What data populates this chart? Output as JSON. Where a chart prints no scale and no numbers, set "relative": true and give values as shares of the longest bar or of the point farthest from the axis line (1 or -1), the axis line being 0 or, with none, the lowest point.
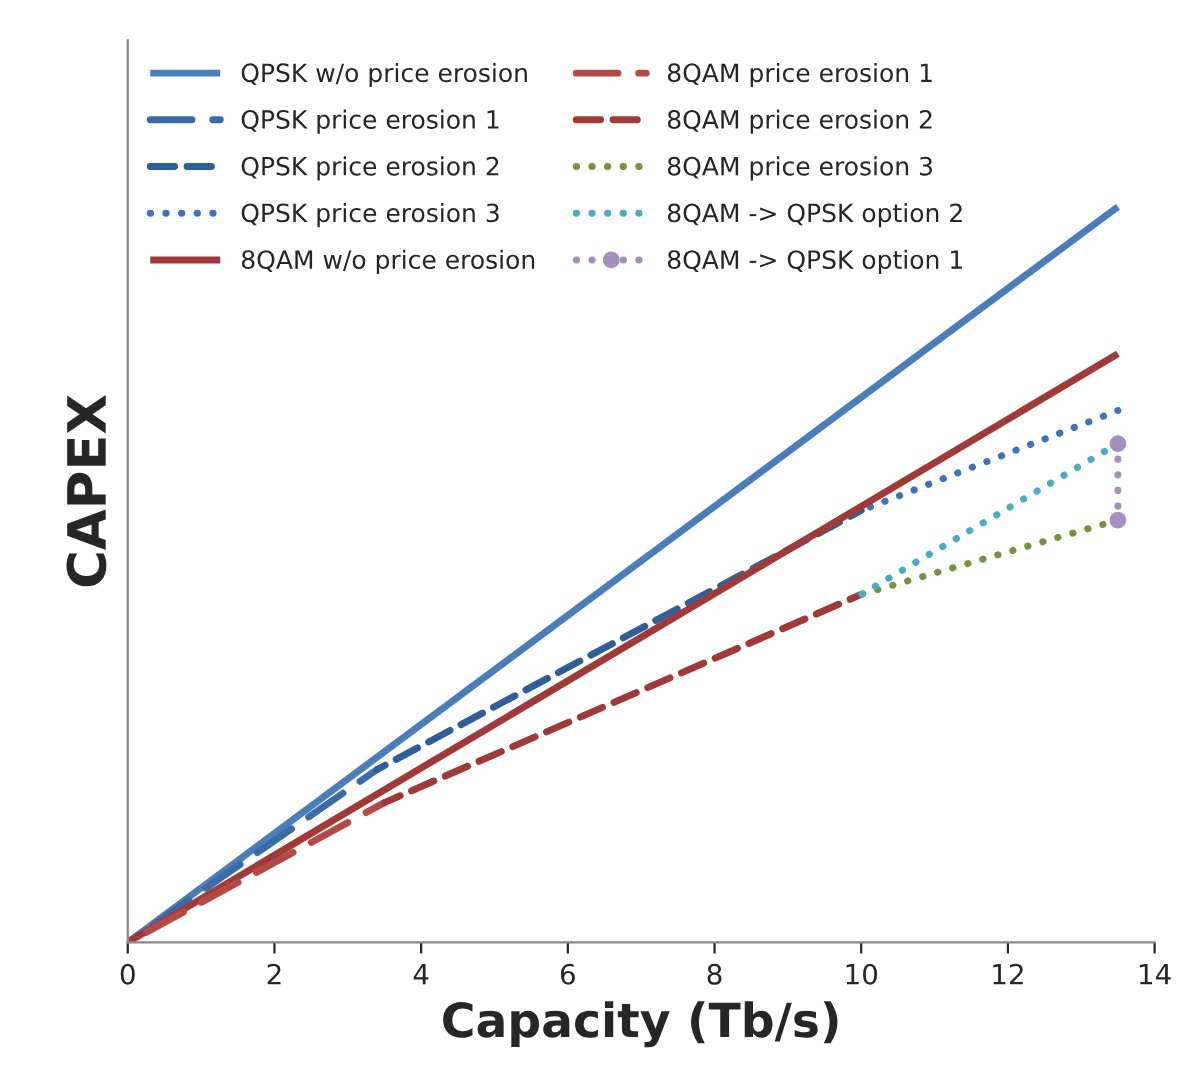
{
  "chart_data": {
    "type": "line",
    "xlabel": "Capacity (Tb/s)",
    "ylabel": "CAPEX",
    "relative": true,
    "xlim": [
      0,
      14
    ],
    "xticks": [
      0,
      2,
      4,
      6,
      8,
      10,
      12,
      14
    ],
    "grid": false,
    "legend": "top left",
    "series": [
      {
        "name": "QPSK w/o price erosion",
        "color": "#4a7ebb",
        "line_style": "solid",
        "x": [
          0,
          13.5
        ],
        "values": [
          0,
          1
        ]
      },
      {
        "name": "QPSK price erosion 1",
        "color": "#3a6aa8",
        "line_style": "dashed",
        "x": [
          0,
          3.4
        ],
        "values": [
          0,
          0.235
        ]
      },
      {
        "name": "QPSK price erosion 2",
        "color": "#2f5f98",
        "line_style": "dashed",
        "x": [
          3.4,
          10
        ],
        "values": [
          0.235,
          0.587
        ]
      },
      {
        "name": "QPSK price erosion 3",
        "color": "#3d74bd",
        "line_style": "dotted",
        "x": [
          10,
          13.5
        ],
        "values": [
          0.587,
          0.723
        ]
      },
      {
        "name": "8QAM w/o price erosion",
        "color": "#a13a36",
        "line_style": "solid",
        "x": [
          0,
          13.5
        ],
        "values": [
          0,
          0.8
        ]
      },
      {
        "name": "8QAM price erosion 1",
        "color": "#b24a45",
        "line_style": "dashed",
        "x": [
          0,
          3.5
        ],
        "values": [
          0,
          0.19
        ]
      },
      {
        "name": "8QAM price erosion 2",
        "color": "#a13a36",
        "line_style": "dashed",
        "x": [
          3.5,
          10
        ],
        "values": [
          0.19,
          0.473
        ]
      },
      {
        "name": "8QAM price erosion 3",
        "color": "#77933c",
        "line_style": "dotted",
        "x": [
          10,
          13.5
        ],
        "values": [
          0.473,
          0.574
        ]
      },
      {
        "name": "8QAM -> QPSK option 2",
        "color": "#4bacc6",
        "line_style": "dotted",
        "x": [
          10,
          13.5
        ],
        "values": [
          0.473,
          0.678
        ]
      },
      {
        "name": "8QAM -> QPSK option 1",
        "color": "#a48fbf",
        "line_style": "dotted",
        "marker": "circle",
        "x": [
          13.5,
          13.5
        ],
        "values": [
          0.574,
          0.678
        ]
      }
    ]
  }
}
